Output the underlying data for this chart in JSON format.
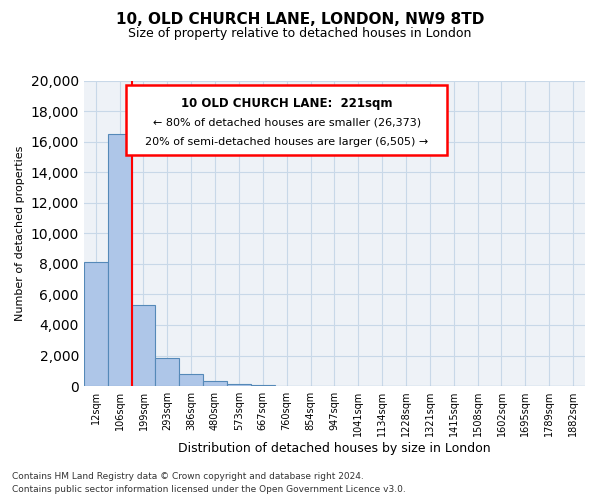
{
  "title": "10, OLD CHURCH LANE, LONDON, NW9 8TD",
  "subtitle": "Size of property relative to detached houses in London",
  "xlabel": "Distribution of detached houses by size in London",
  "ylabel": "Number of detached properties",
  "footnote1": "Contains HM Land Registry data © Crown copyright and database right 2024.",
  "footnote2": "Contains public sector information licensed under the Open Government Licence v3.0.",
  "bin_labels": [
    "12sqm",
    "106sqm",
    "199sqm",
    "293sqm",
    "386sqm",
    "480sqm",
    "573sqm",
    "667sqm",
    "760sqm",
    "854sqm",
    "947sqm",
    "1041sqm",
    "1134sqm",
    "1228sqm",
    "1321sqm",
    "1415sqm",
    "1508sqm",
    "1602sqm",
    "1695sqm",
    "1789sqm",
    "1882sqm"
  ],
  "bar_heights": [
    8100,
    16500,
    5300,
    1850,
    800,
    300,
    150,
    100,
    0,
    0,
    0,
    0,
    0,
    0,
    0,
    0,
    0,
    0,
    0,
    0,
    0
  ],
  "bar_color": "#aec6e8",
  "bar_edge_color": "#5589b8",
  "ylim": [
    0,
    20000
  ],
  "yticks": [
    0,
    2000,
    4000,
    6000,
    8000,
    10000,
    12000,
    14000,
    16000,
    18000,
    20000
  ],
  "property_label": "10 OLD CHURCH LANE:  221sqm",
  "annotation_line1": "← 80% of detached houses are smaller (26,373)",
  "annotation_line2": "20% of semi-detached houses are larger (6,505) →",
  "grid_color": "#c8d8e8",
  "background_color": "#eef2f7"
}
